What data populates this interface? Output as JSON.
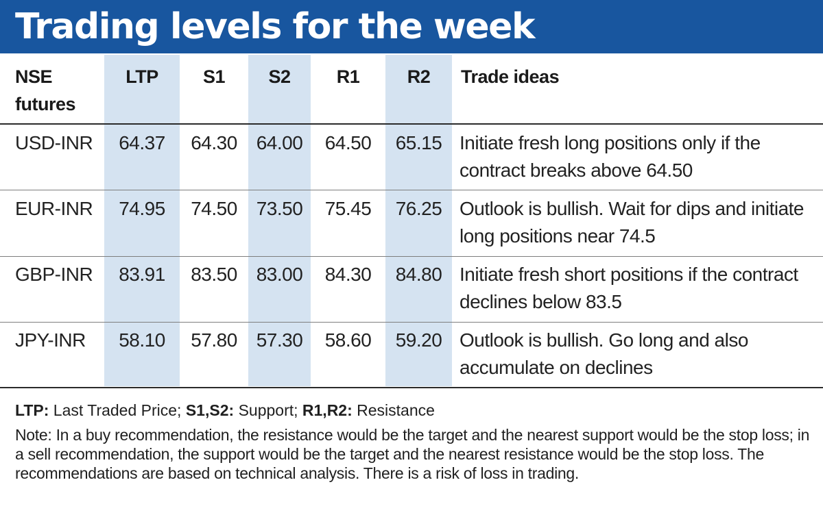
{
  "title": "Trading levels for the week",
  "table": {
    "headers": {
      "label_line1": "NSE",
      "label_line2": "futures",
      "ltp": "LTP",
      "s1": "S1",
      "s2": "S2",
      "r1": "R1",
      "r2": "R2",
      "ideas": "Trade ideas"
    },
    "rows": [
      {
        "contract": "USD-INR",
        "ltp": "64.37",
        "s1": "64.30",
        "s2": "64.00",
        "r1": "64.50",
        "r2": "65.15",
        "idea": "Initiate fresh long positions only if the contract breaks above 64.50"
      },
      {
        "contract": "EUR-INR",
        "ltp": "74.95",
        "s1": "74.50",
        "s2": "73.50",
        "r1": "75.45",
        "r2": "76.25",
        "idea": "Outlook is bullish. Wait for dips and initiate long positions near 74.5"
      },
      {
        "contract": "GBP-INR",
        "ltp": "83.91",
        "s1": "83.50",
        "s2": "83.00",
        "r1": "84.30",
        "r2": "84.80",
        "idea": "Initiate fresh short positions if the contract declines below 83.5"
      },
      {
        "contract": "JPY-INR",
        "ltp": "58.10",
        "s1": "57.80",
        "s2": "57.30",
        "r1": "58.60",
        "r2": "59.20",
        "idea": "Outlook is bullish. Go long and also accumulate on declines"
      }
    ]
  },
  "legend": {
    "ltp_key": "LTP:",
    "ltp_text": "Last Traded Price;",
    "s_key": "S1,S2:",
    "s_text": "Support;",
    "r_key": "R1,R2:",
    "r_text": "Resistance"
  },
  "note": "Note: In a buy recommendation, the resistance would be the target and the nearest support would be the stop loss; in a sell recommendation, the support would be the target and the nearest resistance would be the stop loss. The recommendations are based on technical analysis. There is a risk of loss in trading.",
  "colors": {
    "title_bar": "#18569f",
    "column_shade": "#d5e3f1"
  },
  "chart_data": {
    "type": "table",
    "title": "Trading levels for the week",
    "columns": [
      "NSE futures",
      "LTP",
      "S1",
      "S2",
      "R1",
      "R2",
      "Trade ideas"
    ],
    "rows": [
      [
        "USD-INR",
        64.37,
        64.3,
        64.0,
        64.5,
        65.15,
        "Initiate fresh long positions only if the contract breaks above 64.50"
      ],
      [
        "EUR-INR",
        74.95,
        74.5,
        73.5,
        75.45,
        76.25,
        "Outlook is bullish. Wait for dips and initiate long positions near 74.5"
      ],
      [
        "GBP-INR",
        83.91,
        83.5,
        83.0,
        84.3,
        84.8,
        "Initiate fresh short positions if the contract declines below 83.5"
      ],
      [
        "JPY-INR",
        58.1,
        57.8,
        57.3,
        58.6,
        59.2,
        "Outlook is bullish. Go long and also accumulate on declines"
      ]
    ]
  }
}
